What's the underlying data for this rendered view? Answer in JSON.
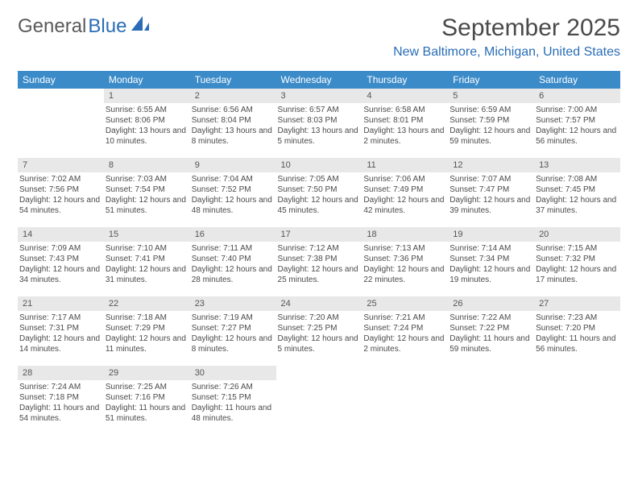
{
  "logo": {
    "text1": "General",
    "text2": "Blue"
  },
  "header": {
    "month_title": "September 2025",
    "location": "New Baltimore, Michigan, United States"
  },
  "colors": {
    "header_bg": "#3b8bc9",
    "header_fg": "#ffffff",
    "daynum_bg": "#e8e8e8",
    "accent": "#2a6db5",
    "text": "#4a4a4a",
    "page_bg": "#ffffff"
  },
  "weekdays": [
    "Sunday",
    "Monday",
    "Tuesday",
    "Wednesday",
    "Thursday",
    "Friday",
    "Saturday"
  ],
  "weeks": [
    [
      null,
      {
        "n": "1",
        "sunrise": "6:55 AM",
        "sunset": "8:06 PM",
        "daylight": "13 hours and 10 minutes."
      },
      {
        "n": "2",
        "sunrise": "6:56 AM",
        "sunset": "8:04 PM",
        "daylight": "13 hours and 8 minutes."
      },
      {
        "n": "3",
        "sunrise": "6:57 AM",
        "sunset": "8:03 PM",
        "daylight": "13 hours and 5 minutes."
      },
      {
        "n": "4",
        "sunrise": "6:58 AM",
        "sunset": "8:01 PM",
        "daylight": "13 hours and 2 minutes."
      },
      {
        "n": "5",
        "sunrise": "6:59 AM",
        "sunset": "7:59 PM",
        "daylight": "12 hours and 59 minutes."
      },
      {
        "n": "6",
        "sunrise": "7:00 AM",
        "sunset": "7:57 PM",
        "daylight": "12 hours and 56 minutes."
      }
    ],
    [
      {
        "n": "7",
        "sunrise": "7:02 AM",
        "sunset": "7:56 PM",
        "daylight": "12 hours and 54 minutes."
      },
      {
        "n": "8",
        "sunrise": "7:03 AM",
        "sunset": "7:54 PM",
        "daylight": "12 hours and 51 minutes."
      },
      {
        "n": "9",
        "sunrise": "7:04 AM",
        "sunset": "7:52 PM",
        "daylight": "12 hours and 48 minutes."
      },
      {
        "n": "10",
        "sunrise": "7:05 AM",
        "sunset": "7:50 PM",
        "daylight": "12 hours and 45 minutes."
      },
      {
        "n": "11",
        "sunrise": "7:06 AM",
        "sunset": "7:49 PM",
        "daylight": "12 hours and 42 minutes."
      },
      {
        "n": "12",
        "sunrise": "7:07 AM",
        "sunset": "7:47 PM",
        "daylight": "12 hours and 39 minutes."
      },
      {
        "n": "13",
        "sunrise": "7:08 AM",
        "sunset": "7:45 PM",
        "daylight": "12 hours and 37 minutes."
      }
    ],
    [
      {
        "n": "14",
        "sunrise": "7:09 AM",
        "sunset": "7:43 PM",
        "daylight": "12 hours and 34 minutes."
      },
      {
        "n": "15",
        "sunrise": "7:10 AM",
        "sunset": "7:41 PM",
        "daylight": "12 hours and 31 minutes."
      },
      {
        "n": "16",
        "sunrise": "7:11 AM",
        "sunset": "7:40 PM",
        "daylight": "12 hours and 28 minutes."
      },
      {
        "n": "17",
        "sunrise": "7:12 AM",
        "sunset": "7:38 PM",
        "daylight": "12 hours and 25 minutes."
      },
      {
        "n": "18",
        "sunrise": "7:13 AM",
        "sunset": "7:36 PM",
        "daylight": "12 hours and 22 minutes."
      },
      {
        "n": "19",
        "sunrise": "7:14 AM",
        "sunset": "7:34 PM",
        "daylight": "12 hours and 19 minutes."
      },
      {
        "n": "20",
        "sunrise": "7:15 AM",
        "sunset": "7:32 PM",
        "daylight": "12 hours and 17 minutes."
      }
    ],
    [
      {
        "n": "21",
        "sunrise": "7:17 AM",
        "sunset": "7:31 PM",
        "daylight": "12 hours and 14 minutes."
      },
      {
        "n": "22",
        "sunrise": "7:18 AM",
        "sunset": "7:29 PM",
        "daylight": "12 hours and 11 minutes."
      },
      {
        "n": "23",
        "sunrise": "7:19 AM",
        "sunset": "7:27 PM",
        "daylight": "12 hours and 8 minutes."
      },
      {
        "n": "24",
        "sunrise": "7:20 AM",
        "sunset": "7:25 PM",
        "daylight": "12 hours and 5 minutes."
      },
      {
        "n": "25",
        "sunrise": "7:21 AM",
        "sunset": "7:24 PM",
        "daylight": "12 hours and 2 minutes."
      },
      {
        "n": "26",
        "sunrise": "7:22 AM",
        "sunset": "7:22 PM",
        "daylight": "11 hours and 59 minutes."
      },
      {
        "n": "27",
        "sunrise": "7:23 AM",
        "sunset": "7:20 PM",
        "daylight": "11 hours and 56 minutes."
      }
    ],
    [
      {
        "n": "28",
        "sunrise": "7:24 AM",
        "sunset": "7:18 PM",
        "daylight": "11 hours and 54 minutes."
      },
      {
        "n": "29",
        "sunrise": "7:25 AM",
        "sunset": "7:16 PM",
        "daylight": "11 hours and 51 minutes."
      },
      {
        "n": "30",
        "sunrise": "7:26 AM",
        "sunset": "7:15 PM",
        "daylight": "11 hours and 48 minutes."
      },
      null,
      null,
      null,
      null
    ]
  ],
  "labels": {
    "sunrise_prefix": "Sunrise: ",
    "sunset_prefix": "Sunset: ",
    "daylight_prefix": "Daylight: "
  }
}
